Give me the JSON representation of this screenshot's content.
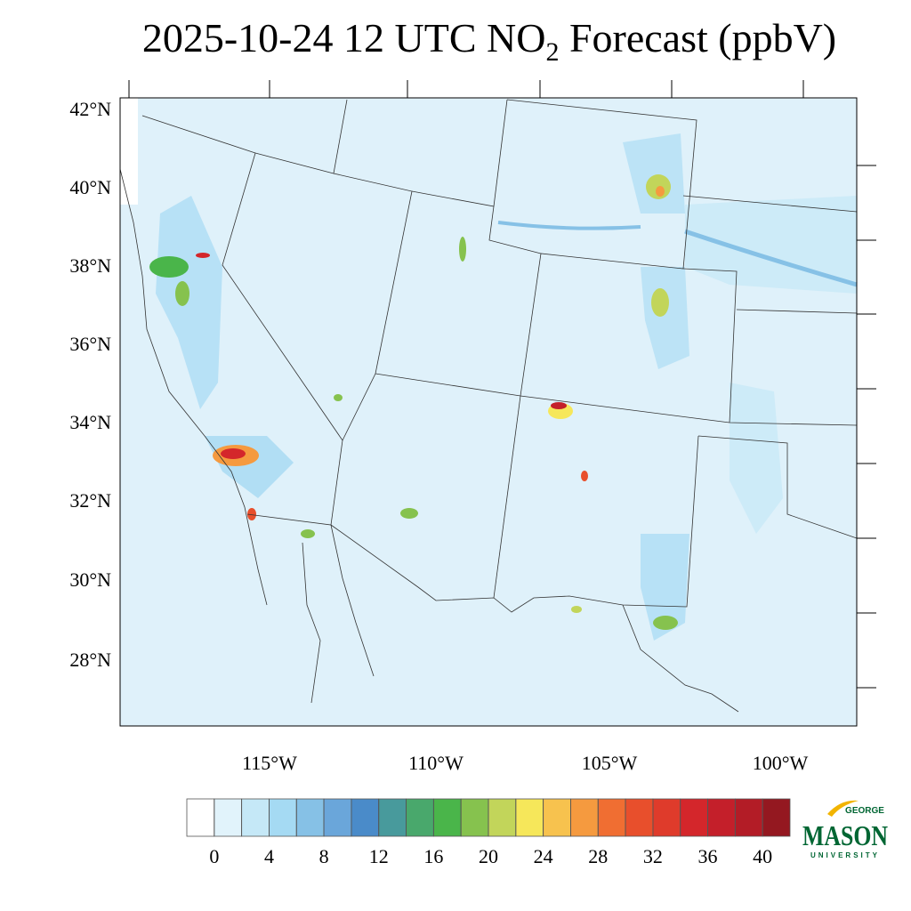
{
  "title": {
    "main": "2025-10-24 12 UTC NO",
    "subscript": "2",
    "rest": " Forecast (ppbV)"
  },
  "lat_labels": [
    "42°N",
    "40°N",
    "38°N",
    "36°N",
    "34°N",
    "32°N",
    "30°N",
    "28°N"
  ],
  "lon_labels": [
    "115°W",
    "110°W",
    "105°W",
    "100°W"
  ],
  "colorbar": {
    "levels": [
      0,
      2,
      4,
      6,
      8,
      10,
      12,
      14,
      16,
      18,
      20,
      22,
      24,
      26,
      28,
      30,
      32,
      34,
      36,
      38,
      40
    ],
    "colors": [
      "#ffffff",
      "#e1f3fb",
      "#c5e8f7",
      "#a5daf3",
      "#86c1e6",
      "#6aa6da",
      "#4a8bc9",
      "#489a9c",
      "#49a86c",
      "#4ab54a",
      "#86c24e",
      "#c2d55a",
      "#f6e75a",
      "#f7c24e",
      "#f59a3f",
      "#f06e32",
      "#e84f2c",
      "#df3b2b",
      "#d4262b",
      "#c41f2a",
      "#b31c26",
      "#941820"
    ],
    "ticks": [
      0,
      4,
      8,
      12,
      16,
      20,
      24,
      28,
      32,
      36,
      40
    ]
  },
  "logo": {
    "top": "GEORGE",
    "main": "MASON",
    "bottom": "UNIVERSITY"
  }
}
